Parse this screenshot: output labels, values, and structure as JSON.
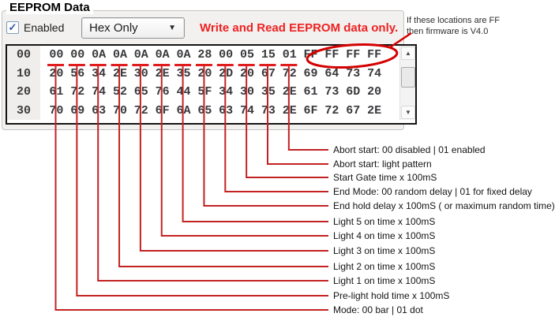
{
  "panel": {
    "title": "EEPROM Data",
    "checkbox_label": "Enabled",
    "checkbox_checked": true,
    "dropdown_value": "Hex Only",
    "red_note": "Write and Read EEPROM data only.",
    "firmware_note_line1": "If these locations are FF",
    "firmware_note_line2": "then firmware is V4.0"
  },
  "hex_viewer": {
    "rows": [
      {
        "offset": "00",
        "bytes": [
          "00",
          "00",
          "0A",
          "0A",
          "0A",
          "0A",
          "0A",
          "28",
          "00",
          "05",
          "15",
          "01",
          "FF",
          "FF",
          "FF",
          "FF"
        ]
      },
      {
        "offset": "10",
        "bytes": [
          "20",
          "56",
          "34",
          "2E",
          "30",
          "2E",
          "35",
          "20",
          "2D",
          "20",
          "67",
          "72",
          "69",
          "64",
          "73",
          "74"
        ]
      },
      {
        "offset": "20",
        "bytes": [
          "61",
          "72",
          "74",
          "52",
          "65",
          "76",
          "44",
          "5F",
          "34",
          "30",
          "35",
          "2E",
          "61",
          "73",
          "6D",
          "20"
        ]
      },
      {
        "offset": "30",
        "bytes": [
          "70",
          "69",
          "63",
          "70",
          "72",
          "6F",
          "6A",
          "65",
          "63",
          "74",
          "73",
          "2E",
          "6F",
          "72",
          "67",
          "2E"
        ]
      }
    ],
    "circled_bytes": "FF FF FF FF",
    "circled_byte_indexes": [
      12,
      13,
      14,
      15
    ]
  },
  "annotations": [
    {
      "byte_index": 11,
      "label": "Abort start:  00 disabled | 01 enabled"
    },
    {
      "byte_index": 10,
      "label": "Abort start:  light pattern"
    },
    {
      "byte_index": 9,
      "label": "Start Gate time x 100mS"
    },
    {
      "byte_index": 8,
      "label": "End Mode: 00 random delay | 01 for fixed delay"
    },
    {
      "byte_index": 7,
      "label": "End hold delay x 100mS ( or maximum random time)"
    },
    {
      "byte_index": 6,
      "label": "Light 5 on time x 100mS"
    },
    {
      "byte_index": 5,
      "label": "Light 4 on time x 100mS"
    },
    {
      "byte_index": 4,
      "label": "Light 3 on time x 100mS"
    },
    {
      "byte_index": 3,
      "label": "Light 2 on time x 100mS"
    },
    {
      "byte_index": 2,
      "label": "Light 1 on time x 100mS"
    },
    {
      "byte_index": 1,
      "label": "Pre-light hold time x 100mS"
    },
    {
      "byte_index": 0,
      "label": "Mode: 00 bar | 01 dot"
    }
  ],
  "icons": {
    "checkbox_check": "✓",
    "dropdown_arrow": "▼",
    "scroll_up": "▲",
    "scroll_down": "▼"
  },
  "colors": {
    "annotation_red": "#c32222",
    "underline_red": "#e01c1c",
    "ellipse_red": "#d40000",
    "note_red": "#ee2222"
  }
}
